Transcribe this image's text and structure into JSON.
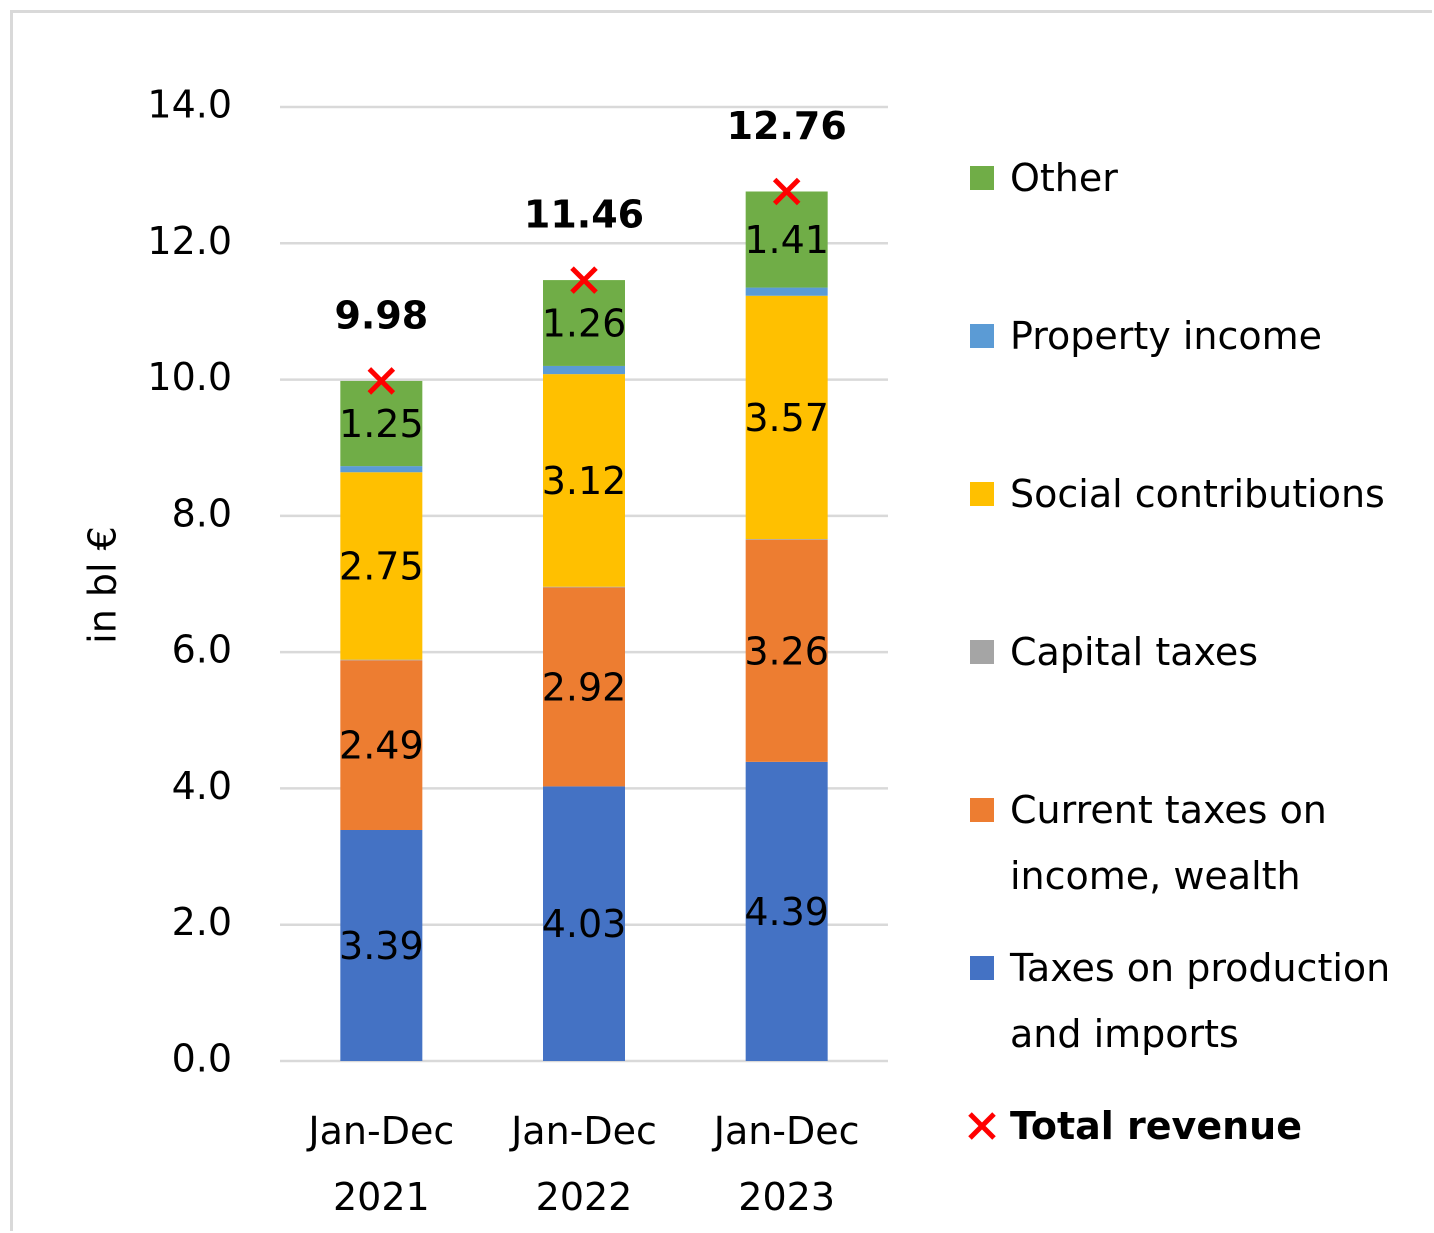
{
  "chart_data": {
    "type": "stacked_bar",
    "ylabel": "in bl €",
    "categories": [
      "Jan-Dec 2021",
      "Jan-Dec 2022",
      "Jan-Dec 2023"
    ],
    "series": [
      {
        "name": "Taxes on production and imports",
        "color": "#4472c4",
        "values": [
          3.39,
          4.03,
          4.39
        ],
        "data_labels": true
      },
      {
        "name": "Current taxes on income, wealth",
        "color": "#ed7d31",
        "values": [
          2.49,
          2.92,
          3.26
        ],
        "data_labels": true
      },
      {
        "name": "Capital taxes",
        "color": "#a5a5a5",
        "values": [
          0.01,
          0.01,
          0.01
        ],
        "data_labels": false
      },
      {
        "name": "Social contributions",
        "color": "#ffc000",
        "values": [
          2.75,
          3.12,
          3.57
        ],
        "data_labels": true
      },
      {
        "name": "Property income",
        "color": "#5b9bd5",
        "values": [
          0.09,
          0.12,
          0.12
        ],
        "data_labels": false
      },
      {
        "name": "Other",
        "color": "#70ad47",
        "values": [
          1.25,
          1.26,
          1.41
        ],
        "data_labels": true
      },
      {
        "name": "Total revenue",
        "type": "marker",
        "color": "#ff0000",
        "values": [
          9.98,
          11.46,
          12.76
        ],
        "data_labels": true
      }
    ],
    "ylim": [
      0,
      14
    ],
    "yticks": [
      {
        "value": 0,
        "label": "0.0"
      },
      {
        "value": 2,
        "label": "2.0"
      },
      {
        "value": 4,
        "label": "4.0"
      },
      {
        "value": 6,
        "label": "6.0"
      },
      {
        "value": 8,
        "label": "8.0"
      },
      {
        "value": 10,
        "label": "10.0"
      },
      {
        "value": 12,
        "label": "12.0"
      },
      {
        "value": 14,
        "label": "14.0"
      }
    ],
    "grid": true,
    "legend": "right"
  }
}
